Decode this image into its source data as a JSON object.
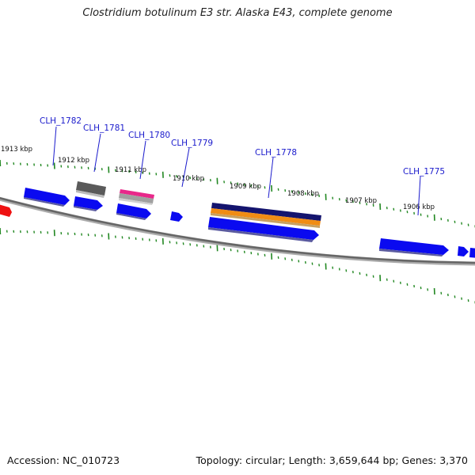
{
  "title": "Clostridium botulinum E3 str. Alaska E43, complete genome",
  "footer": {
    "accession": "Accession: NC_010723",
    "stats": "Topology: circular; Length: 3,659,644 bp; Genes: 3,370"
  },
  "colors": {
    "cds": "#0a0af0",
    "cds_shadow": "#5a5aa0",
    "gene_dark": "#5a5a5a",
    "rna_pink": "#e8288a",
    "rna_grey": "#a0a0a0",
    "navy": "#14146e",
    "orange": "#f08c14",
    "red": "#ee1111",
    "backbone": "#777777",
    "tick": "#228822",
    "label": "#1a1acc"
  },
  "kbp_labels": [
    "1913 kbp",
    "1912 kbp",
    "1911 kbp",
    "1910 kbp",
    "1909 kbp",
    "1908 kbp",
    "1907 kbp",
    "1906 kbp"
  ],
  "gene_labels": [
    "CLH_1782",
    "CLH_1781",
    "CLH_1780",
    "CLH_1779",
    "CLH_1778",
    "CLH_1775"
  ]
}
